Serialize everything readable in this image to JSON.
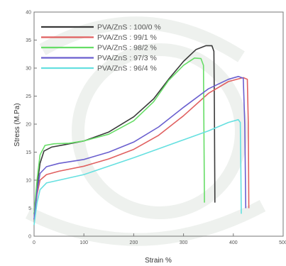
{
  "chart_data": {
    "type": "line",
    "title": "",
    "xlabel": "Strain %",
    "ylabel": "Stress (M.Pa)",
    "xlim": [
      0,
      500
    ],
    "ylim": [
      0,
      40
    ],
    "xticks": [
      0,
      100,
      200,
      300,
      400,
      500
    ],
    "yticks": [
      0,
      5,
      10,
      15,
      20,
      25,
      30,
      35,
      40
    ],
    "grid": false,
    "legend_position": "top-left",
    "series": [
      {
        "name": "PVA/ZnS : 100/0 %",
        "color": "#3a3a3a",
        "points": [
          [
            0,
            4
          ],
          [
            6,
            9
          ],
          [
            12,
            13
          ],
          [
            20,
            15.2
          ],
          [
            35,
            15.9
          ],
          [
            60,
            16.3
          ],
          [
            100,
            17
          ],
          [
            150,
            18.6
          ],
          [
            200,
            21.3
          ],
          [
            240,
            24.5
          ],
          [
            270,
            28
          ],
          [
            300,
            31.2
          ],
          [
            325,
            33.3
          ],
          [
            345,
            34
          ],
          [
            357,
            34
          ],
          [
            361,
            33
          ],
          [
            362,
            23
          ],
          [
            363,
            6
          ]
        ]
      },
      {
        "name": "PVA/ZnS : 99/1 %",
        "color": "#e06060",
        "points": [
          [
            0,
            3
          ],
          [
            6,
            7.5
          ],
          [
            12,
            10
          ],
          [
            25,
            11
          ],
          [
            50,
            11.6
          ],
          [
            100,
            12.5
          ],
          [
            150,
            13.8
          ],
          [
            200,
            15.5
          ],
          [
            250,
            18
          ],
          [
            300,
            21.5
          ],
          [
            350,
            25.5
          ],
          [
            390,
            27.6
          ],
          [
            420,
            28.3
          ],
          [
            428,
            28
          ],
          [
            430,
            20
          ],
          [
            431,
            5
          ]
        ]
      },
      {
        "name": "PVA/ZnS : 98/2 %",
        "color": "#66dd66",
        "points": [
          [
            0,
            4
          ],
          [
            6,
            10
          ],
          [
            12,
            14.5
          ],
          [
            22,
            16.2
          ],
          [
            40,
            16.5
          ],
          [
            70,
            16.6
          ],
          [
            100,
            17
          ],
          [
            150,
            18.2
          ],
          [
            200,
            20.6
          ],
          [
            240,
            24
          ],
          [
            270,
            27.8
          ],
          [
            300,
            30.5
          ],
          [
            322,
            31.8
          ],
          [
            335,
            31.7
          ],
          [
            340,
            30.5
          ],
          [
            341,
            18
          ],
          [
            342,
            6
          ]
        ]
      },
      {
        "name": "PVA/ZnS : 97/3 %",
        "color": "#6a5fcf",
        "points": [
          [
            0,
            3
          ],
          [
            6,
            8
          ],
          [
            12,
            11.2
          ],
          [
            25,
            12.4
          ],
          [
            50,
            13
          ],
          [
            100,
            13.7
          ],
          [
            150,
            15
          ],
          [
            200,
            16.8
          ],
          [
            250,
            19.5
          ],
          [
            300,
            23
          ],
          [
            350,
            26.3
          ],
          [
            390,
            28
          ],
          [
            410,
            28.5
          ],
          [
            420,
            28.2
          ],
          [
            423,
            20
          ],
          [
            425,
            5
          ]
        ]
      },
      {
        "name": "PVA/ZnS : 96/4 %",
        "color": "#66e0e0",
        "points": [
          [
            0,
            2
          ],
          [
            6,
            6
          ],
          [
            12,
            8.3
          ],
          [
            25,
            9.5
          ],
          [
            50,
            10
          ],
          [
            100,
            11
          ],
          [
            150,
            12.5
          ],
          [
            200,
            14
          ],
          [
            250,
            15.6
          ],
          [
            300,
            17.2
          ],
          [
            350,
            18.8
          ],
          [
            390,
            20.3
          ],
          [
            410,
            20.8
          ],
          [
            414,
            20.3
          ],
          [
            415,
            13
          ],
          [
            416,
            4
          ]
        ]
      }
    ]
  }
}
